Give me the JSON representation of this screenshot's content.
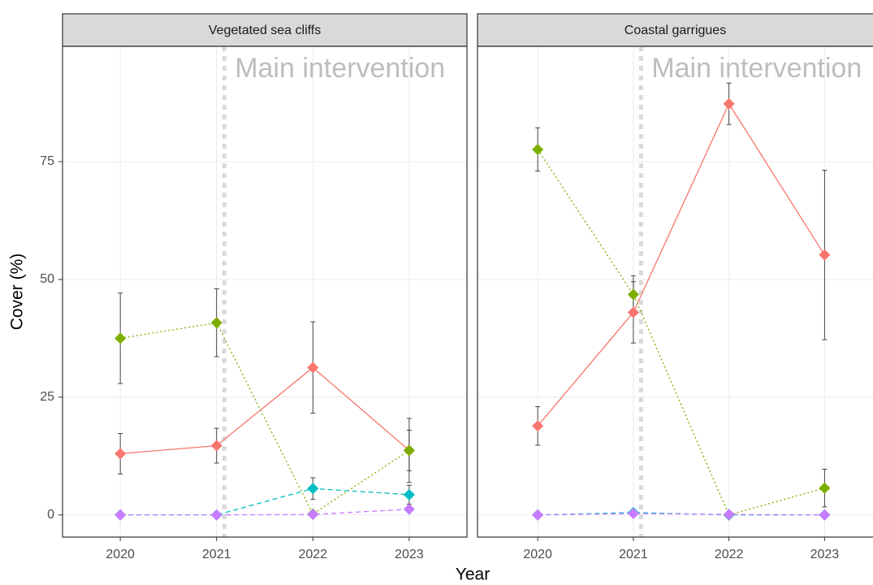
{
  "chart_data": [
    {
      "type": "line",
      "title": "Vegetated sea cliffs",
      "y_label": "Cover (%)",
      "x_label": "Year",
      "annotation": "Main intervention",
      "intervention_x": 2021.08,
      "x": [
        2020,
        2021,
        2022,
        2023
      ],
      "xlim": [
        2019.4,
        2023.6
      ],
      "xticks": [
        2020,
        2021,
        2022,
        2023
      ],
      "ylim": [
        -4.7,
        99.5
      ],
      "yticks": [
        0,
        25,
        50,
        75
      ],
      "grid": true,
      "series": [
        {
          "color": "#F8766D",
          "dash": "solid",
          "values": [
            13,
            14.7,
            31.3,
            13.7
          ],
          "errors": [
            4.3,
            3.7,
            9.7,
            4.3
          ]
        },
        {
          "color": "#7CAE00",
          "dash": "dotted",
          "values": [
            37.5,
            40.8,
            0.2,
            13.7
          ],
          "errors": [
            9.6,
            7.2,
            null,
            6.8
          ]
        },
        {
          "color": "#00BFC4",
          "dash": "dashed",
          "values": [
            0,
            0,
            5.6,
            4.3
          ],
          "errors": [
            null,
            null,
            2.3,
            2
          ]
        },
        {
          "color": "#C77CFF",
          "dash": "dashed",
          "values": [
            0,
            0,
            0.1,
            1.2
          ],
          "errors": [
            null,
            null,
            null,
            null
          ]
        }
      ]
    },
    {
      "type": "line",
      "title": "Coastal garrigues",
      "annotation": "Main intervention",
      "intervention_x": 2021.08,
      "x": [
        2020,
        2021,
        2022,
        2023
      ],
      "xlim": [
        2019.37,
        2023.6
      ],
      "xticks": [
        2020,
        2021,
        2022,
        2023
      ],
      "ylim": [
        -4.7,
        99.5
      ],
      "yticks": [
        0,
        25,
        50,
        75
      ],
      "grid": true,
      "series": [
        {
          "color": "#F8766D",
          "dash": "solid",
          "values": [
            18.9,
            43,
            87.3,
            55.2
          ],
          "errors": [
            4.1,
            6.5,
            4.4,
            18
          ]
        },
        {
          "color": "#7CAE00",
          "dash": "dotted",
          "values": [
            77.6,
            46.8,
            0,
            5.7
          ],
          "errors": [
            4.6,
            4,
            null,
            4
          ]
        },
        {
          "color": "#00BFC4",
          "dash": "dashed",
          "values": [
            0,
            0.5,
            0,
            0
          ],
          "errors": [
            null,
            null,
            null,
            null
          ]
        },
        {
          "color": "#C77CFF",
          "dash": "dashed",
          "values": [
            0,
            0.3,
            0.1,
            0
          ],
          "errors": [
            null,
            null,
            null,
            null
          ]
        }
      ]
    }
  ]
}
